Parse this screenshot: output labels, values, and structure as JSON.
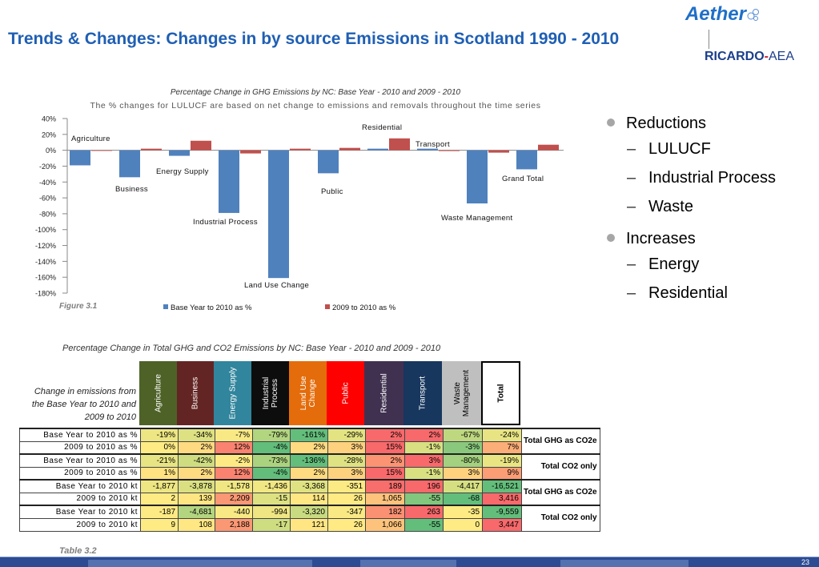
{
  "slide": {
    "title": "Trends & Changes: Changes in by source Emissions in Scotland 1990 - 2010",
    "page_number": "23"
  },
  "logo": {
    "aether": "Aether",
    "ricardo": "RICARDO",
    "dash": "-",
    "aea": "AEA"
  },
  "bullets": {
    "reductions": {
      "label": "Reductions",
      "items": [
        "LULUCF",
        "Industrial Process",
        "Waste"
      ]
    },
    "increases": {
      "label": "Increases",
      "items": [
        "Energy",
        "Residential"
      ]
    }
  },
  "colors": {
    "title": "#1f5fb4",
    "base_series": "#4f81bd",
    "change_series": "#c0504d",
    "table_green": "#63be7b",
    "table_yellow": "#ffeb84",
    "table_red": "#f8696b"
  },
  "chart_data": {
    "type": "bar",
    "title": "Percentage Change in  GHG Emissions by NC: Base Year - 2010 and 2009 - 2010",
    "subtitle": "The % changes for LULUCF are based on net change to emissions and removals throughout the time series",
    "categories": [
      "Agriculture",
      "Business",
      "Energy Supply",
      "Industrial Process",
      "Land Use Change",
      "Public",
      "Residential",
      "Transport",
      "Waste Management",
      "Grand Total"
    ],
    "series": [
      {
        "name": "Base Year to 2010 as %",
        "color": "#4f81bd",
        "values": [
          -19,
          -34,
          -7,
          -79,
          -161,
          -29,
          2,
          2,
          -67,
          -24
        ]
      },
      {
        "name": "2009 to 2010 as %",
        "color": "#c0504d",
        "values": [
          0,
          2,
          12,
          -4,
          2,
          3,
          15,
          -1,
          -3,
          7
        ]
      }
    ],
    "yticks": [
      "40%",
      "20%",
      "0%",
      "-20%",
      "-40%",
      "-60%",
      "-80%",
      "-100%",
      "-120%",
      "-140%",
      "-160%",
      "-180%"
    ],
    "ylim": [
      -180,
      40
    ],
    "grid": false,
    "legend": "bottom",
    "figure_label": "Figure 3.1"
  },
  "table": {
    "title": "Percentage Change in Total GHG and CO2 Emissions by NC: Base Year - 2010 and 2009 - 2010",
    "row_header": "Change in emissions from the Base Year to 2010 and 2009 to 2010",
    "caption": "Table 3.2",
    "columns": [
      "Agriculture",
      "Business",
      "Energy Supply",
      "Industrial Process",
      "Land Use Change",
      "Public",
      "Residential",
      "Transport",
      "Waste Management",
      "Total"
    ],
    "rows": [
      {
        "label": "Base Year to 2010 as %",
        "values": [
          "-19%",
          "-34%",
          "-7%",
          "-79%",
          "-161%",
          "-29%",
          "2%",
          "2%",
          "-67%",
          "-24%"
        ]
      },
      {
        "label": "2009 to 2010 as %",
        "values": [
          "0%",
          "2%",
          "12%",
          "-4%",
          "2%",
          "3%",
          "15%",
          "-1%",
          "-3%",
          "7%"
        ]
      },
      {
        "label": "Base Year to 2010 as %",
        "values": [
          "-21%",
          "-42%",
          "-2%",
          "-73%",
          "-136%",
          "-28%",
          "2%",
          "3%",
          "-80%",
          "-19%"
        ]
      },
      {
        "label": "2009 to 2010 as %",
        "values": [
          "1%",
          "2%",
          "12%",
          "-4%",
          "2%",
          "3%",
          "15%",
          "-1%",
          "3%",
          "9%"
        ]
      },
      {
        "label": "Base Year to 2010 kt",
        "values": [
          "-1,877",
          "-3,878",
          "-1,578",
          "-1,436",
          "-3,368",
          "-351",
          "189",
          "196",
          "-4,417",
          "-16,521"
        ]
      },
      {
        "label": "2009 to 2010  kt",
        "values": [
          "2",
          "139",
          "2,209",
          "-15",
          "114",
          "26",
          "1,065",
          "-55",
          "-68",
          "3,416"
        ]
      },
      {
        "label": "Base Year to 2010 kt",
        "values": [
          "-187",
          "-4,681",
          "-440",
          "-994",
          "-3,320",
          "-347",
          "182",
          "263",
          "-35",
          "-9,559"
        ]
      },
      {
        "label": "2009 to 2010  kt",
        "values": [
          "9",
          "108",
          "2,188",
          "-17",
          "121",
          "26",
          "1,066",
          "-55",
          "0",
          "3,447"
        ]
      }
    ],
    "notes": [
      "Total GHG as CO2e",
      "Total CO2 only",
      "Total GHG as CO2e",
      "Total CO2 only"
    ]
  }
}
